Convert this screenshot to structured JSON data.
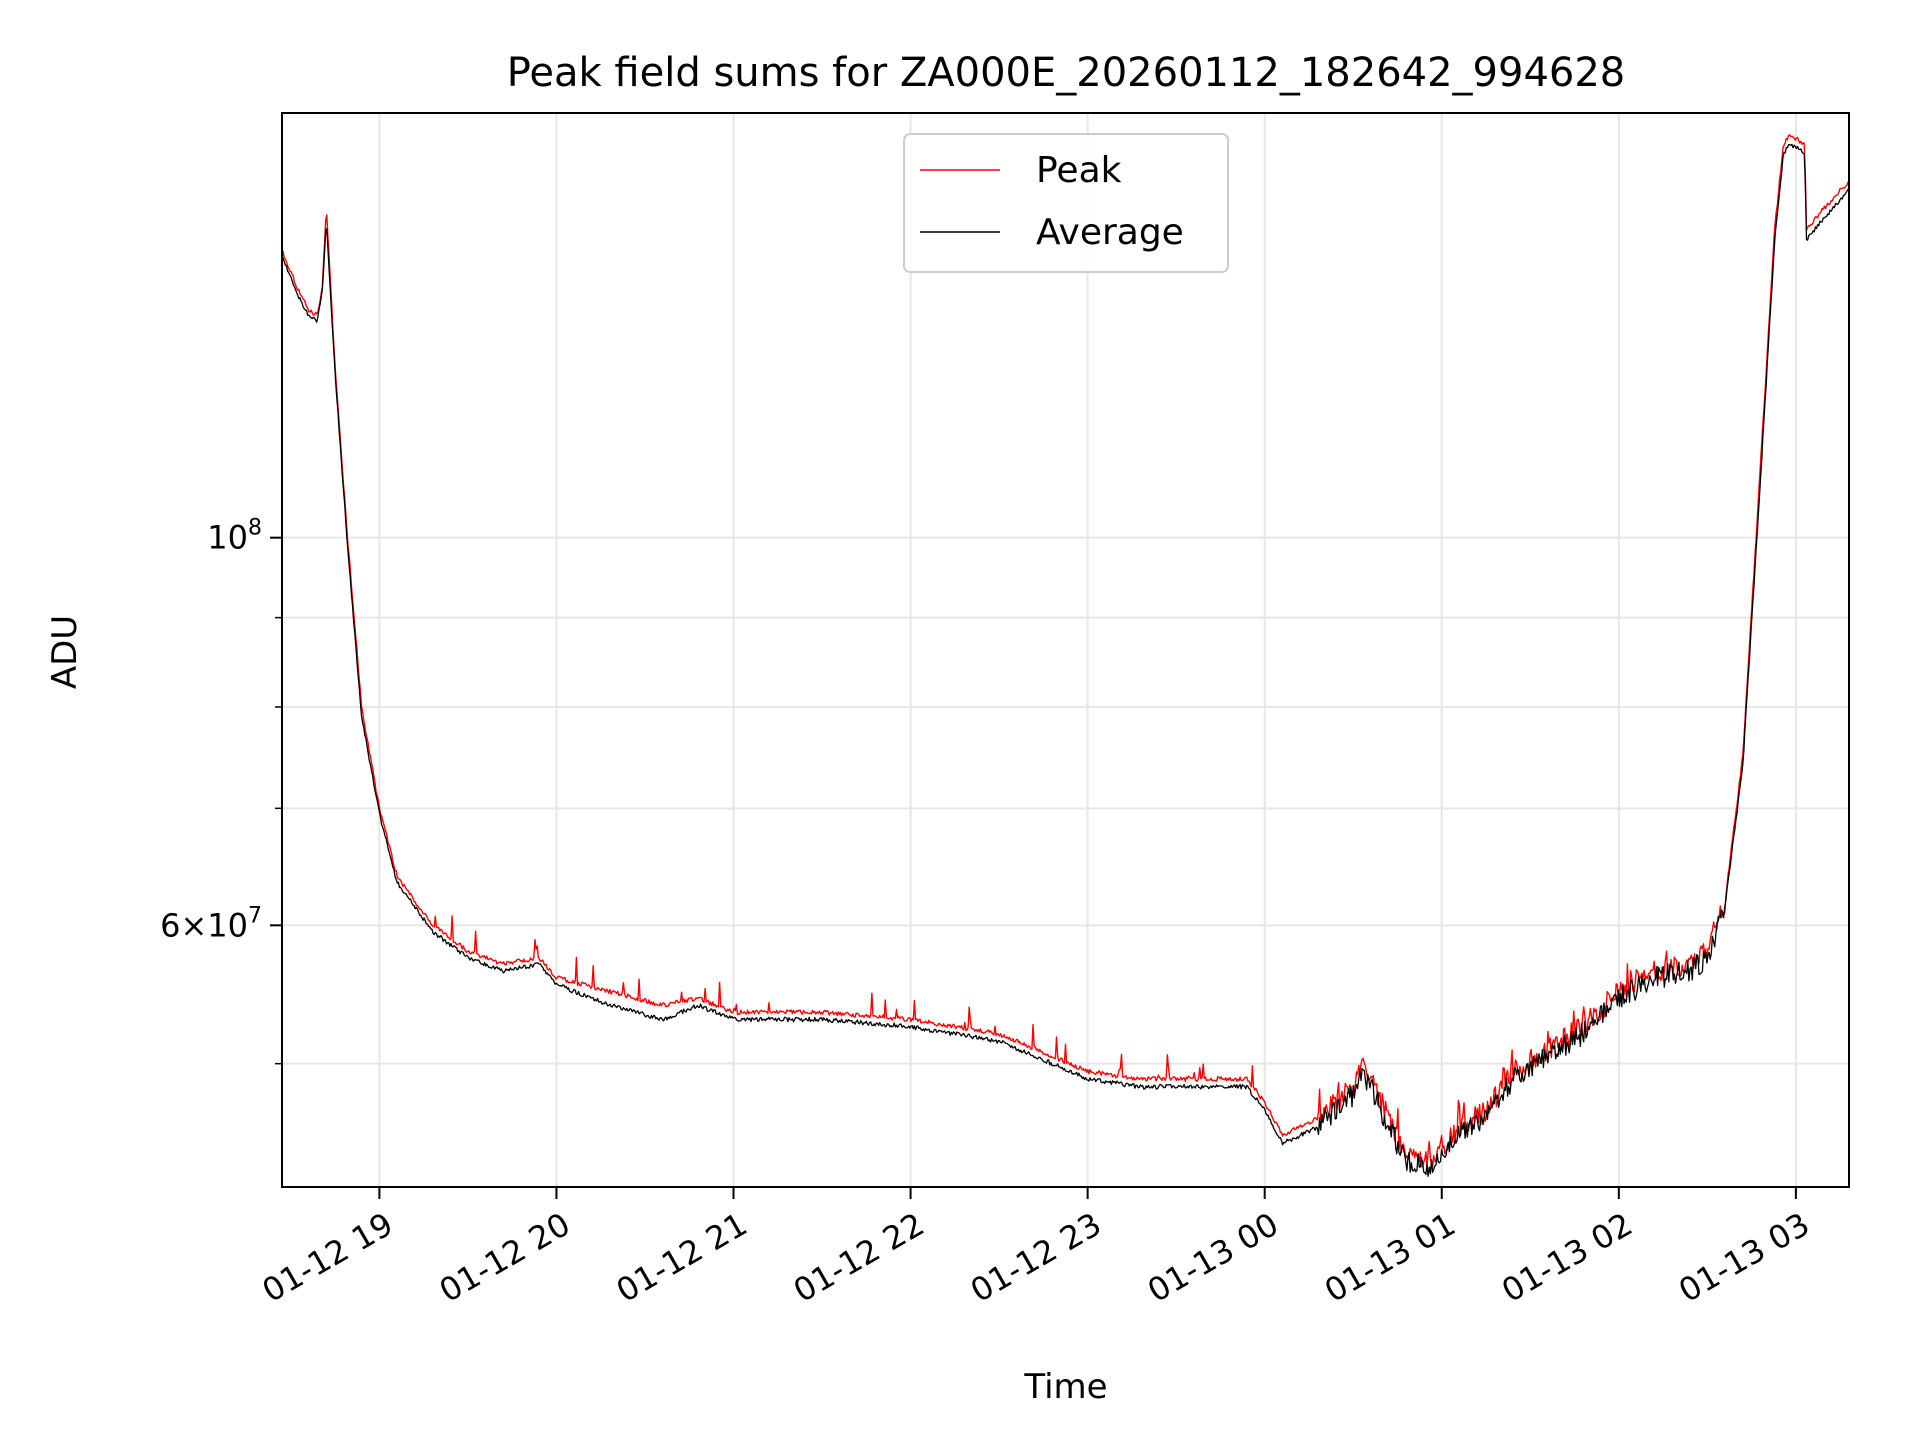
{
  "chart_data": {
    "type": "line",
    "title": "Peak field sums for ZA000E_20260112_182642_994628",
    "xlabel": "Time",
    "ylabel": "ADU",
    "yscale": "log",
    "xlim": [
      18.45,
      27.3
    ],
    "ylim": [
      42500000,
      175000000
    ],
    "grid": true,
    "legend_position": "top-center",
    "xticks": [
      {
        "value": 19,
        "label": "01-12 19"
      },
      {
        "value": 20,
        "label": "01-12 20"
      },
      {
        "value": 21,
        "label": "01-12 21"
      },
      {
        "value": 22,
        "label": "01-12 22"
      },
      {
        "value": 23,
        "label": "01-12 23"
      },
      {
        "value": 24,
        "label": "01-13 00"
      },
      {
        "value": 25,
        "label": "01-13 01"
      },
      {
        "value": 26,
        "label": "01-13 02"
      },
      {
        "value": 27,
        "label": "01-13 03"
      }
    ],
    "yticks_major": [
      {
        "value": 100000000,
        "base": "10",
        "exp": "8",
        "coef": ""
      },
      {
        "value": 60000000,
        "base": "10",
        "exp": "7",
        "coef": "6×"
      }
    ],
    "yticks_minor": [
      50000000,
      70000000,
      80000000,
      90000000
    ],
    "series": [
      {
        "name": "Peak",
        "color": "#ff0000",
        "keypoints": [
          [
            18.45,
            146000000
          ],
          [
            18.55,
            138000000
          ],
          [
            18.6,
            135000000
          ],
          [
            18.65,
            134000000
          ],
          [
            18.68,
            140000000
          ],
          [
            18.7,
            155000000
          ],
          [
            18.75,
            125000000
          ],
          [
            18.82,
            100000000
          ],
          [
            18.9,
            80000000
          ],
          [
            19.0,
            70000000
          ],
          [
            19.1,
            64000000
          ],
          [
            19.3,
            60000000
          ],
          [
            19.5,
            58000000
          ],
          [
            19.7,
            57000000
          ],
          [
            19.9,
            57500000
          ],
          [
            20.0,
            56000000
          ],
          [
            20.3,
            55000000
          ],
          [
            20.6,
            54000000
          ],
          [
            20.8,
            54500000
          ],
          [
            21.0,
            53500000
          ],
          [
            21.5,
            53500000
          ],
          [
            22.0,
            53000000
          ],
          [
            22.5,
            52000000
          ],
          [
            22.8,
            50500000
          ],
          [
            23.0,
            49500000
          ],
          [
            23.3,
            49000000
          ],
          [
            23.6,
            49000000
          ],
          [
            23.9,
            49000000
          ],
          [
            24.0,
            47500000
          ],
          [
            24.1,
            45500000
          ],
          [
            24.3,
            46500000
          ],
          [
            24.5,
            48500000
          ],
          [
            24.55,
            50000000
          ],
          [
            24.6,
            49000000
          ],
          [
            24.7,
            46500000
          ],
          [
            24.8,
            44500000
          ],
          [
            24.95,
            44000000
          ],
          [
            25.1,
            46000000
          ],
          [
            25.25,
            47000000
          ],
          [
            25.4,
            49500000
          ],
          [
            25.6,
            51000000
          ],
          [
            25.8,
            52500000
          ],
          [
            26.0,
            55000000
          ],
          [
            26.2,
            56500000
          ],
          [
            26.4,
            57000000
          ],
          [
            26.5,
            58000000
          ],
          [
            26.6,
            62000000
          ],
          [
            26.7,
            75000000
          ],
          [
            26.8,
            110000000
          ],
          [
            26.88,
            150000000
          ],
          [
            26.93,
            168000000
          ],
          [
            26.97,
            170000000
          ],
          [
            27.05,
            168000000
          ],
          [
            27.06,
            150000000
          ],
          [
            27.15,
            154000000
          ],
          [
            27.3,
            160000000
          ]
        ],
        "seed": 7
      },
      {
        "name": "Average",
        "color": "#000000",
        "keypoints": [
          [
            18.45,
            145000000
          ],
          [
            18.55,
            137000000
          ],
          [
            18.6,
            134000000
          ],
          [
            18.65,
            133000000
          ],
          [
            18.68,
            139000000
          ],
          [
            18.7,
            152000000
          ],
          [
            18.75,
            124000000
          ],
          [
            18.82,
            99000000
          ],
          [
            18.9,
            79000000
          ],
          [
            19.0,
            69500000
          ],
          [
            19.1,
            63500000
          ],
          [
            19.3,
            59500000
          ],
          [
            19.5,
            57500000
          ],
          [
            19.7,
            56500000
          ],
          [
            19.9,
            57000000
          ],
          [
            20.0,
            55500000
          ],
          [
            20.3,
            54000000
          ],
          [
            20.6,
            53000000
          ],
          [
            20.8,
            54000000
          ],
          [
            21.0,
            53000000
          ],
          [
            21.5,
            53000000
          ],
          [
            22.0,
            52500000
          ],
          [
            22.5,
            51500000
          ],
          [
            22.8,
            50000000
          ],
          [
            23.0,
            49000000
          ],
          [
            23.3,
            48500000
          ],
          [
            23.6,
            48500000
          ],
          [
            23.9,
            48500000
          ],
          [
            24.0,
            47000000
          ],
          [
            24.1,
            45000000
          ],
          [
            24.3,
            46000000
          ],
          [
            24.5,
            48000000
          ],
          [
            24.55,
            49500000
          ],
          [
            24.6,
            48500000
          ],
          [
            24.7,
            46000000
          ],
          [
            24.8,
            44000000
          ],
          [
            24.95,
            43500000
          ],
          [
            25.1,
            45500000
          ],
          [
            25.25,
            46500000
          ],
          [
            25.4,
            49000000
          ],
          [
            25.6,
            50500000
          ],
          [
            25.8,
            52000000
          ],
          [
            26.0,
            54500000
          ],
          [
            26.2,
            56000000
          ],
          [
            26.4,
            56500000
          ],
          [
            26.5,
            57500000
          ],
          [
            26.6,
            61500000
          ],
          [
            26.7,
            74000000
          ],
          [
            26.8,
            108000000
          ],
          [
            26.88,
            148000000
          ],
          [
            26.93,
            166000000
          ],
          [
            26.97,
            168000000
          ],
          [
            27.05,
            166000000
          ],
          [
            27.06,
            148000000
          ],
          [
            27.15,
            152000000
          ],
          [
            27.3,
            158000000
          ]
        ],
        "seed": 3
      }
    ]
  }
}
